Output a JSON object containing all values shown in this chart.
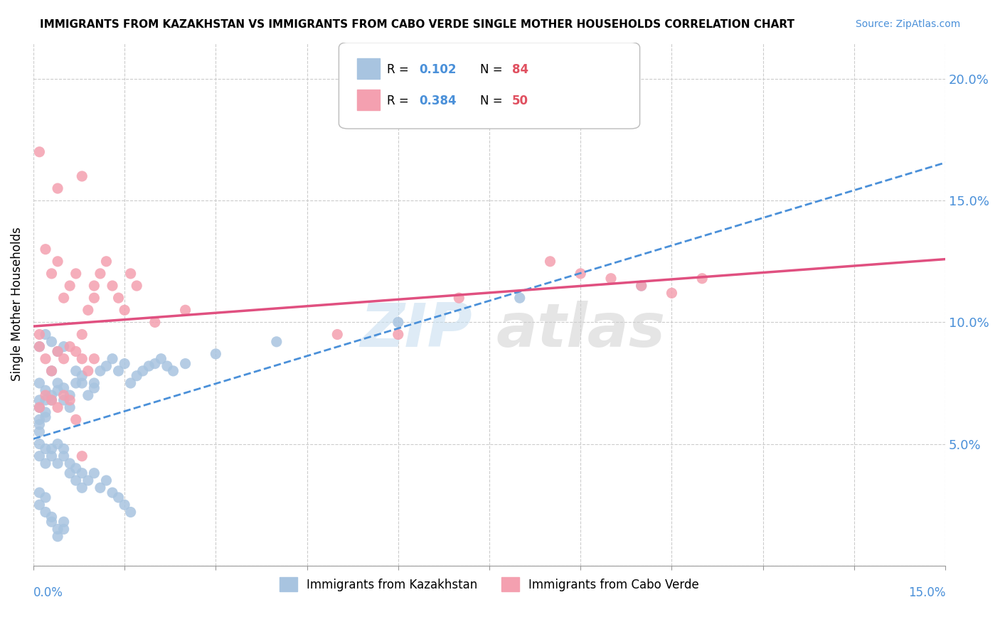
{
  "title": "IMMIGRANTS FROM KAZAKHSTAN VS IMMIGRANTS FROM CABO VERDE SINGLE MOTHER HOUSEHOLDS CORRELATION CHART",
  "source": "Source: ZipAtlas.com",
  "ylabel": "Single Mother Households",
  "right_yticks": [
    0.0,
    0.05,
    0.1,
    0.15,
    0.2
  ],
  "right_yticklabels": [
    "",
    "5.0%",
    "10.0%",
    "15.0%",
    "20.0%"
  ],
  "xlim": [
    0.0,
    0.15
  ],
  "ylim": [
    0.0,
    0.215
  ],
  "legend_r1": "0.102",
  "legend_n1": "84",
  "legend_r2": "0.384",
  "legend_n2": "50",
  "color_kazakhstan": "#a8c4e0",
  "color_cabo_verde": "#f4a0b0",
  "line_color_kazakhstan": "#4a90d9",
  "line_color_cabo_verde": "#e05080",
  "scatter_kazakhstan": [
    [
      0.001,
      0.068
    ],
    [
      0.002,
      0.072
    ],
    [
      0.001,
      0.075
    ],
    [
      0.001,
      0.065
    ],
    [
      0.002,
      0.063
    ],
    [
      0.001,
      0.06
    ],
    [
      0.002,
      0.068
    ],
    [
      0.001,
      0.055
    ],
    [
      0.001,
      0.058
    ],
    [
      0.002,
      0.061
    ],
    [
      0.003,
      0.07
    ],
    [
      0.003,
      0.068
    ],
    [
      0.004,
      0.075
    ],
    [
      0.004,
      0.072
    ],
    [
      0.003,
      0.08
    ],
    [
      0.005,
      0.073
    ],
    [
      0.005,
      0.068
    ],
    [
      0.006,
      0.07
    ],
    [
      0.006,
      0.065
    ],
    [
      0.007,
      0.075
    ],
    [
      0.007,
      0.08
    ],
    [
      0.008,
      0.075
    ],
    [
      0.008,
      0.078
    ],
    [
      0.009,
      0.07
    ],
    [
      0.01,
      0.073
    ],
    [
      0.01,
      0.075
    ],
    [
      0.011,
      0.08
    ],
    [
      0.012,
      0.082
    ],
    [
      0.013,
      0.085
    ],
    [
      0.014,
      0.08
    ],
    [
      0.015,
      0.083
    ],
    [
      0.016,
      0.075
    ],
    [
      0.017,
      0.078
    ],
    [
      0.018,
      0.08
    ],
    [
      0.019,
      0.082
    ],
    [
      0.02,
      0.083
    ],
    [
      0.021,
      0.085
    ],
    [
      0.022,
      0.082
    ],
    [
      0.023,
      0.08
    ],
    [
      0.025,
      0.083
    ],
    [
      0.001,
      0.05
    ],
    [
      0.002,
      0.048
    ],
    [
      0.001,
      0.045
    ],
    [
      0.002,
      0.042
    ],
    [
      0.003,
      0.048
    ],
    [
      0.003,
      0.045
    ],
    [
      0.004,
      0.05
    ],
    [
      0.004,
      0.042
    ],
    [
      0.005,
      0.045
    ],
    [
      0.005,
      0.048
    ],
    [
      0.006,
      0.042
    ],
    [
      0.006,
      0.038
    ],
    [
      0.007,
      0.04
    ],
    [
      0.007,
      0.035
    ],
    [
      0.008,
      0.038
    ],
    [
      0.008,
      0.032
    ],
    [
      0.009,
      0.035
    ],
    [
      0.01,
      0.038
    ],
    [
      0.011,
      0.032
    ],
    [
      0.012,
      0.035
    ],
    [
      0.013,
      0.03
    ],
    [
      0.014,
      0.028
    ],
    [
      0.015,
      0.025
    ],
    [
      0.016,
      0.022
    ],
    [
      0.001,
      0.03
    ],
    [
      0.002,
      0.028
    ],
    [
      0.001,
      0.025
    ],
    [
      0.002,
      0.022
    ],
    [
      0.003,
      0.02
    ],
    [
      0.003,
      0.018
    ],
    [
      0.004,
      0.015
    ],
    [
      0.004,
      0.012
    ],
    [
      0.005,
      0.018
    ],
    [
      0.005,
      0.015
    ],
    [
      0.001,
      0.09
    ],
    [
      0.002,
      0.095
    ],
    [
      0.003,
      0.092
    ],
    [
      0.004,
      0.088
    ],
    [
      0.005,
      0.09
    ],
    [
      0.03,
      0.087
    ],
    [
      0.04,
      0.092
    ],
    [
      0.06,
      0.1
    ],
    [
      0.08,
      0.11
    ],
    [
      0.1,
      0.115
    ]
  ],
  "scatter_cabo_verde": [
    [
      0.001,
      0.095
    ],
    [
      0.002,
      0.13
    ],
    [
      0.003,
      0.12
    ],
    [
      0.004,
      0.125
    ],
    [
      0.005,
      0.11
    ],
    [
      0.006,
      0.115
    ],
    [
      0.007,
      0.12
    ],
    [
      0.008,
      0.095
    ],
    [
      0.009,
      0.105
    ],
    [
      0.01,
      0.11
    ],
    [
      0.01,
      0.115
    ],
    [
      0.011,
      0.12
    ],
    [
      0.012,
      0.125
    ],
    [
      0.013,
      0.115
    ],
    [
      0.014,
      0.11
    ],
    [
      0.015,
      0.105
    ],
    [
      0.016,
      0.12
    ],
    [
      0.017,
      0.115
    ],
    [
      0.001,
      0.09
    ],
    [
      0.002,
      0.085
    ],
    [
      0.003,
      0.08
    ],
    [
      0.004,
      0.088
    ],
    [
      0.005,
      0.085
    ],
    [
      0.006,
      0.09
    ],
    [
      0.007,
      0.088
    ],
    [
      0.008,
      0.085
    ],
    [
      0.009,
      0.08
    ],
    [
      0.01,
      0.085
    ],
    [
      0.001,
      0.17
    ],
    [
      0.004,
      0.155
    ],
    [
      0.008,
      0.16
    ],
    [
      0.001,
      0.065
    ],
    [
      0.002,
      0.07
    ],
    [
      0.003,
      0.068
    ],
    [
      0.004,
      0.065
    ],
    [
      0.005,
      0.07
    ],
    [
      0.006,
      0.068
    ],
    [
      0.007,
      0.06
    ],
    [
      0.008,
      0.045
    ],
    [
      0.06,
      0.095
    ],
    [
      0.02,
      0.1
    ],
    [
      0.025,
      0.105
    ],
    [
      0.085,
      0.125
    ],
    [
      0.09,
      0.12
    ],
    [
      0.095,
      0.118
    ],
    [
      0.1,
      0.115
    ],
    [
      0.105,
      0.112
    ],
    [
      0.11,
      0.118
    ],
    [
      0.05,
      0.095
    ],
    [
      0.07,
      0.11
    ]
  ]
}
